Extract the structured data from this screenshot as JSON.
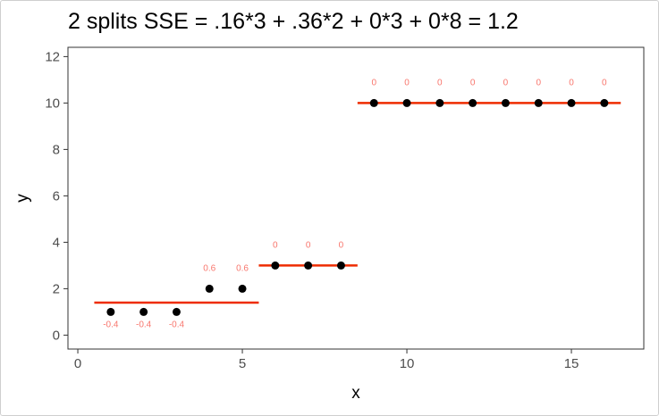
{
  "chart_data": {
    "type": "scatter",
    "title": "2 splits SSE = .16*3 + .36*2 + 0*3 + 0*8 = 1.2",
    "xlabel": "x",
    "ylabel": "y",
    "xlim": [
      -0.3,
      17.2
    ],
    "ylim": [
      -0.6,
      12.4
    ],
    "xticks": [
      0,
      5,
      10,
      15
    ],
    "yticks": [
      0,
      2,
      4,
      6,
      8,
      10,
      12
    ],
    "grid": false,
    "points": [
      {
        "x": 1,
        "y": 1,
        "label": "-0.4"
      },
      {
        "x": 2,
        "y": 1,
        "label": "-0.4"
      },
      {
        "x": 3,
        "y": 1,
        "label": "-0.4"
      },
      {
        "x": 4,
        "y": 2,
        "label": "0.6"
      },
      {
        "x": 5,
        "y": 2,
        "label": "0.6"
      },
      {
        "x": 6,
        "y": 3,
        "label": "0"
      },
      {
        "x": 7,
        "y": 3,
        "label": "0"
      },
      {
        "x": 8,
        "y": 3,
        "label": "0"
      },
      {
        "x": 9,
        "y": 10,
        "label": "0"
      },
      {
        "x": 10,
        "y": 10,
        "label": "0"
      },
      {
        "x": 11,
        "y": 10,
        "label": "0"
      },
      {
        "x": 12,
        "y": 10,
        "label": "0"
      },
      {
        "x": 13,
        "y": 10,
        "label": "0"
      },
      {
        "x": 14,
        "y": 10,
        "label": "0"
      },
      {
        "x": 15,
        "y": 10,
        "label": "0"
      },
      {
        "x": 16,
        "y": 10,
        "label": "0"
      }
    ],
    "segments": [
      {
        "x0": 0.5,
        "x1": 5.5,
        "y": 1.4
      },
      {
        "x0": 5.5,
        "x1": 8.5,
        "y": 3
      },
      {
        "x0": 8.5,
        "x1": 16.5,
        "y": 10
      }
    ],
    "colors": {
      "points": "#000000",
      "segments": "#ee2c00",
      "labels": "#f8766d",
      "panel_border": "#333333"
    }
  }
}
